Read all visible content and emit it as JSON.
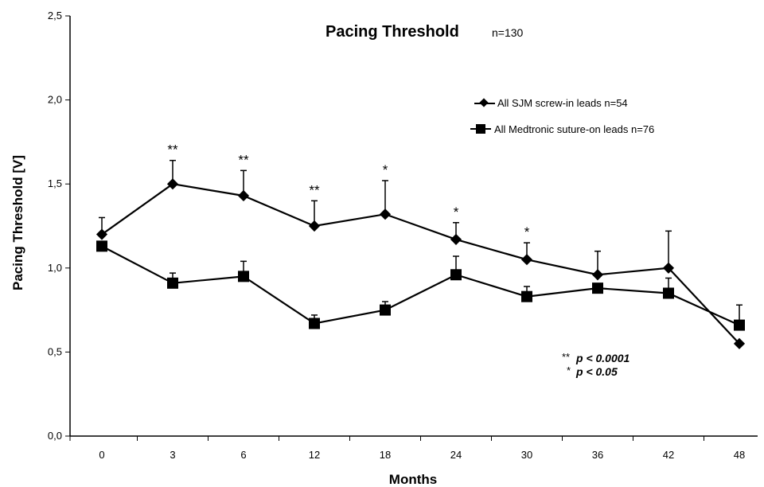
{
  "chart_data": {
    "type": "line",
    "title": "Pacing Threshold",
    "subtitle": "n=130",
    "xlabel": "Months",
    "ylabel": "Pacing Threshold [V]",
    "categories": [
      "0",
      "3",
      "6",
      "12",
      "18",
      "24",
      "30",
      "36",
      "42",
      "48"
    ],
    "yticks": [
      "0,0",
      "0,5",
      "1,0",
      "1,5",
      "2,0",
      "2,5"
    ],
    "ylim": [
      0,
      2.5
    ],
    "legend_position": "top-right",
    "grid": false,
    "series": [
      {
        "name": "All SJM screw-in leads n=54",
        "marker": "diamond",
        "color": "#000000",
        "values": [
          1.2,
          1.5,
          1.43,
          1.25,
          1.32,
          1.17,
          1.05,
          0.96,
          1.0,
          0.55
        ],
        "error_upper": [
          0.1,
          0.14,
          0.15,
          0.15,
          0.2,
          0.1,
          0.1,
          0.14,
          0.22,
          0.0
        ]
      },
      {
        "name": "All Medtronic suture-on leads n=76",
        "marker": "square",
        "color": "#000000",
        "values": [
          1.13,
          0.91,
          0.95,
          0.67,
          0.75,
          0.96,
          0.83,
          0.88,
          0.85,
          0.66
        ],
        "error_upper": [
          0.0,
          0.06,
          0.09,
          0.05,
          0.05,
          0.11,
          0.06,
          0.0,
          0.09,
          0.12
        ]
      }
    ],
    "significance_marks": [
      "",
      "**",
      "**",
      "**",
      "*",
      "*",
      "*",
      "",
      "",
      ""
    ],
    "significance_legend": [
      {
        "symbol": "**",
        "text": "p < 0.0001"
      },
      {
        "symbol": "*",
        "text": "p < 0.05"
      }
    ]
  }
}
